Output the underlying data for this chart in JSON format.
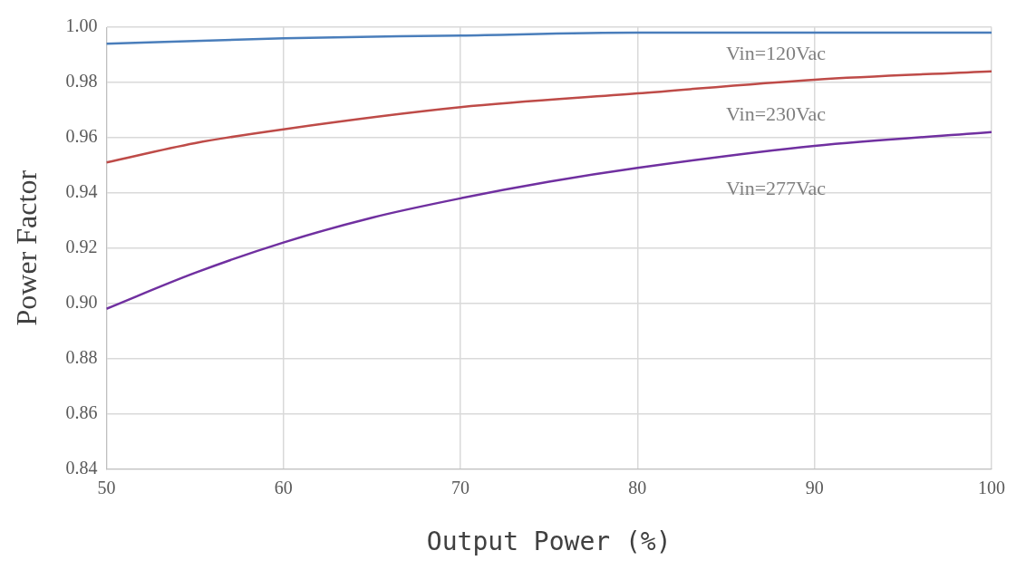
{
  "chart_data": {
    "type": "line",
    "xlabel": "Output Power (%)",
    "ylabel": "Power Factor",
    "xlim": [
      50,
      100
    ],
    "xticks": [
      50,
      60,
      70,
      80,
      90,
      100
    ],
    "ylim": [
      0.84,
      1.0
    ],
    "yticks": [
      {
        "value": 0.84,
        "label": "0.84"
      },
      {
        "value": 0.86,
        "label": "0.86"
      },
      {
        "value": 0.88,
        "label": "0.88"
      },
      {
        "value": 0.9,
        "label": "0.90"
      },
      {
        "value": 0.92,
        "label": "0.92"
      },
      {
        "value": 0.94,
        "label": "0.94"
      },
      {
        "value": 0.96,
        "label": "0.96"
      },
      {
        "value": 0.98,
        "label": "0.98"
      },
      {
        "value": 1.0,
        "label": "1.00"
      }
    ],
    "grid": true,
    "legend": false,
    "marker": "none",
    "line_style": "solid",
    "series": [
      {
        "name": "Vin=120Vac",
        "color": "#4a7ebb",
        "x": [
          50,
          60,
          70,
          80,
          90,
          100
        ],
        "values": [
          0.994,
          0.996,
          0.997,
          0.998,
          0.998,
          0.998
        ]
      },
      {
        "name": "Vin=230Vac",
        "color": "#be4b48",
        "x": [
          50,
          55,
          60,
          70,
          80,
          90,
          100
        ],
        "values": [
          0.951,
          0.958,
          0.963,
          0.971,
          0.976,
          0.981,
          0.984
        ]
      },
      {
        "name": "Vin=277Vac",
        "color": "#7030a0",
        "x": [
          50,
          55,
          60,
          65,
          70,
          75,
          80,
          90,
          100
        ],
        "values": [
          0.898,
          0.911,
          0.922,
          0.931,
          0.938,
          0.944,
          0.949,
          0.957,
          0.962
        ]
      }
    ]
  }
}
